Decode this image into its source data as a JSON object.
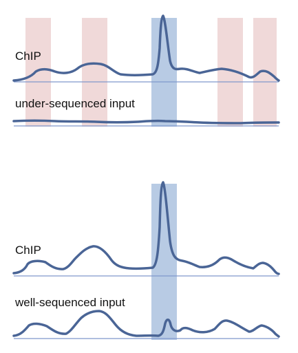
{
  "panels": [
    {
      "id": "top",
      "tracks": [
        {
          "label": "ChIP"
        },
        {
          "label": "under-sequenced input"
        }
      ]
    },
    {
      "id": "bottom",
      "tracks": [
        {
          "label": "ChIP"
        },
        {
          "label": "well-sequenced input"
        }
      ]
    }
  ],
  "colors": {
    "signal": "#4a6596",
    "baseline": "#7f98cc",
    "true_peak_highlight": "#b8cbe4",
    "false_peak_highlight": "#f0d9d9"
  }
}
